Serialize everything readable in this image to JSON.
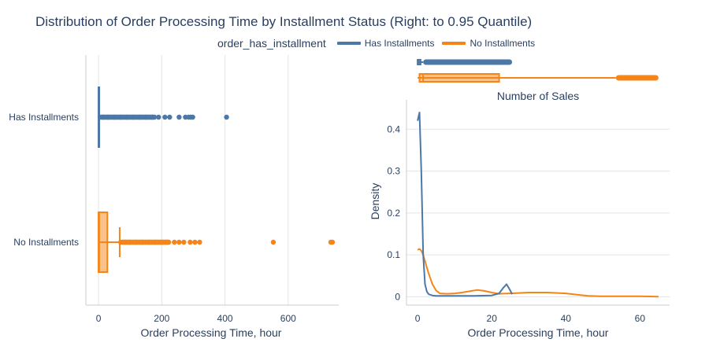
{
  "title": "Distribution of Order Processing Time by Installment Status (Right: to 0.95 Quantile)",
  "legend": {
    "title": "order_has_installment",
    "items": [
      {
        "label": "Has Installments",
        "color": "#4c78a8"
      },
      {
        "label": "No Installments",
        "color": "#f58518"
      }
    ]
  },
  "colors": {
    "has": "#4c78a8",
    "no": "#f58518",
    "grid": "#e5e5e5",
    "axis": "#cccccc"
  },
  "chart_data": [
    {
      "type": "box",
      "orientation": "horizontal",
      "xlabel": "Order Processing Time, hour",
      "xlim": [
        -40,
        760
      ],
      "xticks": [
        0,
        200,
        400,
        600
      ],
      "categories": [
        "Has Installments",
        "No Installments"
      ],
      "series": [
        {
          "name": "Has Installments",
          "min": 0,
          "q1": 0,
          "median": 0.5,
          "q3": 1,
          "upper_fence": 2,
          "outliers": [
            5,
            15,
            30,
            50,
            70,
            90,
            110,
            130,
            150,
            170,
            190,
            210,
            225,
            255,
            275,
            285,
            292,
            298,
            405
          ]
        },
        {
          "name": "No Installments",
          "min": 0,
          "q1": 0,
          "median": 2,
          "q3": 28,
          "upper_fence": 67,
          "outliers": [
            70,
            85,
            100,
            120,
            140,
            160,
            180,
            200,
            215,
            240,
            255,
            270,
            290,
            305,
            320,
            553,
            735,
            740
          ]
        }
      ]
    },
    {
      "type": "box",
      "orientation": "horizontal",
      "xlim": [
        -3,
        68
      ],
      "series": [
        {
          "name": "Has Installments",
          "min": 0,
          "q1": 0,
          "median": 0.3,
          "q3": 0.8,
          "upper_fence": 1.5,
          "outlier_range": [
            1.5,
            25.5
          ]
        },
        {
          "name": "No Installments",
          "min": 0,
          "q1": 0.5,
          "median": 1.5,
          "q3": 22,
          "upper_fence": 53.5,
          "outlier_range": [
            53.5,
            65
          ]
        }
      ]
    },
    {
      "type": "line",
      "title": "Number of Sales",
      "xlabel": "Order Processing Time, hour",
      "ylabel": "Density",
      "xlim": [
        -3,
        68
      ],
      "ylim": [
        -0.02,
        0.47
      ],
      "xticks": [
        0,
        20,
        40,
        60
      ],
      "yticks": [
        0,
        0.1,
        0.2,
        0.3,
        0.4
      ],
      "series": [
        {
          "name": "Has Installments",
          "x": [
            0,
            0.5,
            1,
            1.5,
            2,
            2.5,
            3,
            4,
            5,
            8,
            15,
            20,
            22,
            23,
            24,
            25,
            25.5
          ],
          "y": [
            0.42,
            0.44,
            0.3,
            0.1,
            0.03,
            0.012,
            0.006,
            0.003,
            0.002,
            0.002,
            0.002,
            0.003,
            0.008,
            0.02,
            0.03,
            0.015,
            0.006
          ]
        },
        {
          "name": "No Installments",
          "x": [
            0,
            0.5,
            1,
            1.5,
            2,
            3,
            4,
            5,
            6,
            8,
            10,
            12,
            14,
            16,
            18,
            20,
            22,
            25,
            30,
            35,
            40,
            43,
            46,
            50,
            55,
            60,
            65
          ],
          "y": [
            0.112,
            0.114,
            0.11,
            0.1,
            0.085,
            0.055,
            0.03,
            0.015,
            0.008,
            0.007,
            0.008,
            0.01,
            0.013,
            0.016,
            0.014,
            0.01,
            0.007,
            0.008,
            0.01,
            0.01,
            0.008,
            0.005,
            0.002,
            0.001,
            0.001,
            0.001,
            0.0
          ]
        }
      ]
    }
  ]
}
